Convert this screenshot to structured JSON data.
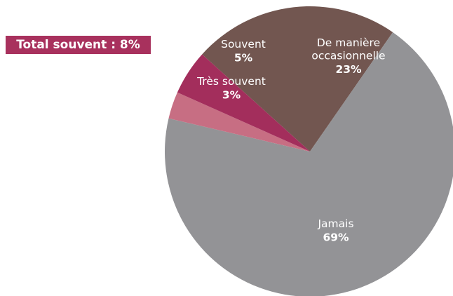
{
  "total_label": "Total souvent : 8%",
  "chart_data": {
    "type": "pie",
    "title": "",
    "slices": [
      {
        "name": "De manière occasionnelle",
        "name_lines": [
          "De manière",
          "occasionnelle"
        ],
        "value": 23,
        "label": "23%",
        "color": "#725650"
      },
      {
        "name": "Jamais",
        "name_lines": [
          "Jamais"
        ],
        "value": 69,
        "label": "69%",
        "color": "#939396"
      },
      {
        "name": "Très souvent",
        "name_lines": [
          "Très souvent"
        ],
        "value": 3,
        "label": "3%",
        "color": "#c76e83"
      },
      {
        "name": "Souvent",
        "name_lines": [
          "Souvent"
        ],
        "value": 5,
        "label": "5%",
        "color": "#a32e5c"
      }
    ]
  }
}
